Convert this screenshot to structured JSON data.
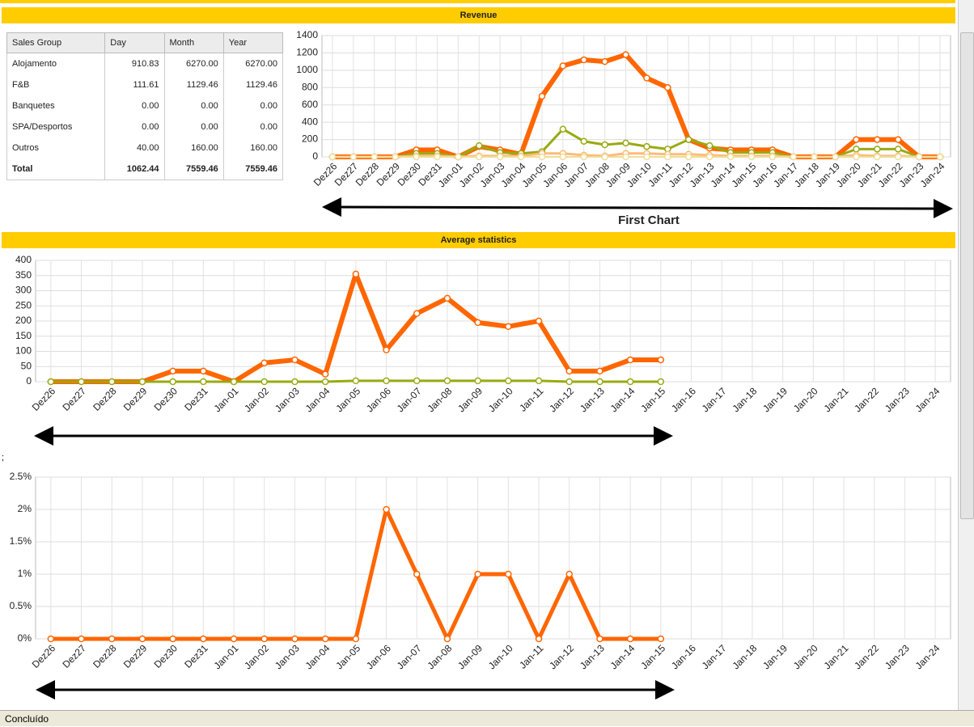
{
  "sections": [
    {
      "title": "Revenue"
    },
    {
      "title": "Average statistics"
    }
  ],
  "table": {
    "headers": [
      "Sales Group",
      "Day",
      "Month",
      "Year"
    ],
    "rows": [
      [
        "Alojamento",
        "910.83",
        "6270.00",
        "6270.00"
      ],
      [
        "F&B",
        "111.61",
        "1129.46",
        "1129.46"
      ],
      [
        "Banquetes",
        "0.00",
        "0.00",
        "0.00"
      ],
      [
        "SPA/Desportos",
        "0.00",
        "0.00",
        "0.00"
      ],
      [
        "Outros",
        "40.00",
        "160.00",
        "160.00"
      ],
      [
        "Total",
        "1062.44",
        "7559.46",
        "7559.46"
      ]
    ]
  },
  "annotation": "First Chart",
  "stray_text": ";",
  "status": "Concluído",
  "chart_data": [
    {
      "type": "line",
      "categories": [
        "Dez26",
        "Dez27",
        "Dez28",
        "Dez29",
        "Dez30",
        "Dez31",
        "Jan-01",
        "Jan-02",
        "Jan-03",
        "Jan-04",
        "Jan-05",
        "Jan-06",
        "Jan-07",
        "Jan-08",
        "Jan-09",
        "Jan-10",
        "Jan-11",
        "Jan-12",
        "Jan-13",
        "Jan-14",
        "Jan-15",
        "Jan-16",
        "Jan-17",
        "Jan-18",
        "Jan-19",
        "Jan-20",
        "Jan-21",
        "Jan-22",
        "Jan-23",
        "Jan-24"
      ],
      "series": [
        {
          "color": "#ff6600",
          "values": [
            0,
            0,
            0,
            0,
            80,
            80,
            0,
            120,
            80,
            30,
            700,
            1050,
            1120,
            1100,
            1180,
            910,
            800,
            200,
            100,
            80,
            80,
            80,
            0,
            0,
            0,
            200,
            200,
            200,
            0,
            0
          ]
        },
        {
          "color": "#99aa11",
          "values": [
            0,
            0,
            0,
            0,
            40,
            40,
            0,
            130,
            50,
            40,
            60,
            320,
            180,
            140,
            160,
            120,
            90,
            200,
            130,
            50,
            50,
            50,
            0,
            0,
            0,
            90,
            90,
            90,
            0,
            0
          ]
        },
        {
          "color": "#ffbb77",
          "values": [
            0,
            0,
            0,
            0,
            10,
            10,
            0,
            10,
            10,
            10,
            40,
            40,
            20,
            10,
            40,
            40,
            30,
            30,
            20,
            10,
            10,
            10,
            0,
            0,
            0,
            20,
            10,
            10,
            0,
            0
          ]
        },
        {
          "color": "#eedd99",
          "values": [
            0,
            0,
            0,
            0,
            0,
            0,
            0,
            0,
            0,
            0,
            0,
            0,
            0,
            0,
            0,
            0,
            0,
            0,
            0,
            0,
            0,
            0,
            0,
            0,
            0,
            0,
            0,
            0,
            0,
            0
          ]
        }
      ],
      "ylim": [
        0,
        1400
      ],
      "yticks": [
        0,
        200,
        400,
        600,
        800,
        1000,
        1200,
        1400
      ],
      "grid": true
    },
    {
      "type": "line",
      "categories": [
        "Dez26",
        "Dez27",
        "Dez28",
        "Dez29",
        "Dez30",
        "Dez31",
        "Jan-01",
        "Jan-02",
        "Jan-03",
        "Jan-04",
        "Jan-05",
        "Jan-06",
        "Jan-07",
        "Jan-08",
        "Jan-09",
        "Jan-10",
        "Jan-11",
        "Jan-12",
        "Jan-13",
        "Jan-14",
        "Jan-15",
        "Jan-16",
        "Jan-17",
        "Jan-18",
        "Jan-19",
        "Jan-20",
        "Jan-21",
        "Jan-22",
        "Jan-23",
        "Jan-24"
      ],
      "series": [
        {
          "color": "#ff6600",
          "values": [
            0,
            0,
            0,
            0,
            35,
            35,
            0,
            62,
            72,
            25,
            355,
            105,
            225,
            275,
            195,
            182,
            200,
            35,
            35,
            72,
            72,
            null,
            null,
            null,
            null,
            null,
            null,
            null,
            null,
            null
          ]
        },
        {
          "color": "#99aa11",
          "values": [
            0,
            0,
            0,
            0,
            0,
            0,
            0,
            0,
            0,
            0,
            3,
            3,
            3,
            3,
            3,
            3,
            3,
            0,
            0,
            0,
            0,
            null,
            null,
            null,
            null,
            null,
            null,
            null,
            null,
            null
          ]
        }
      ],
      "ylim": [
        0,
        400
      ],
      "yticks": [
        0,
        50,
        100,
        150,
        200,
        250,
        300,
        350,
        400
      ],
      "grid": true
    },
    {
      "type": "line",
      "categories": [
        "Dez26",
        "Dez27",
        "Dez28",
        "Dez29",
        "Dez30",
        "Dez31",
        "Jan-01",
        "Jan-02",
        "Jan-03",
        "Jan-04",
        "Jan-05",
        "Jan-06",
        "Jan-07",
        "Jan-08",
        "Jan-09",
        "Jan-10",
        "Jan-11",
        "Jan-12",
        "Jan-13",
        "Jan-14",
        "Jan-15",
        "Jan-16",
        "Jan-17",
        "Jan-18",
        "Jan-19",
        "Jan-20",
        "Jan-21",
        "Jan-22",
        "Jan-23",
        "Jan-24"
      ],
      "series": [
        {
          "color": "#ff6600",
          "values": [
            0,
            0,
            0,
            0,
            0,
            0,
            0,
            0,
            0,
            0,
            0,
            2,
            1,
            0,
            1,
            1,
            0,
            1,
            0,
            0,
            0,
            null,
            null,
            null,
            null,
            null,
            null,
            null,
            null,
            null
          ]
        }
      ],
      "ylim": [
        0,
        2.5
      ],
      "yticks": [
        {
          "value": 0,
          "label": "0%"
        },
        {
          "value": 0.5,
          "label": "0.5%"
        },
        {
          "value": 1,
          "label": "1%"
        },
        {
          "value": 1.5,
          "label": "1.5%"
        },
        {
          "value": 2,
          "label": "2%"
        },
        {
          "value": 2.5,
          "label": "2.5%"
        }
      ],
      "grid": true
    }
  ]
}
